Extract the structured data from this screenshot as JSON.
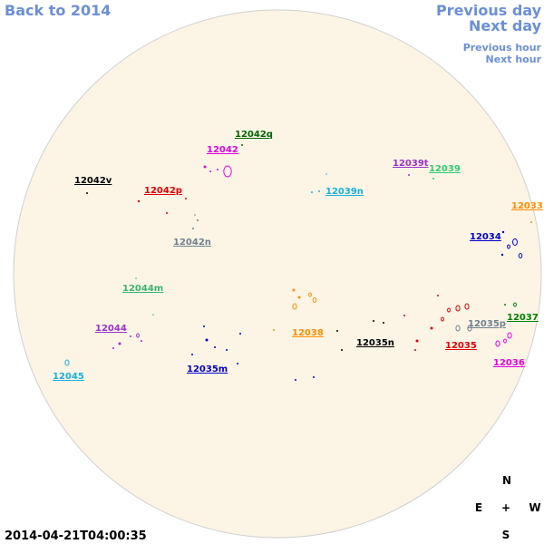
{
  "navigation": {
    "back": "Back to 2014",
    "previous_day": "Previous day",
    "next_day": "Next day",
    "previous_hour": "Previous hour",
    "next_hour": "Next hour"
  },
  "regions": [
    {
      "label": "12042q",
      "color": "#006400"
    },
    {
      "label": "12042",
      "color": "#e000e0"
    },
    {
      "label": "12042v",
      "color": "#000000"
    },
    {
      "label": "12042p",
      "color": "#e00000"
    },
    {
      "label": "12039t",
      "color": "#9932cc"
    },
    {
      "label": "12039",
      "color": "#2ecc71"
    },
    {
      "label": "12039n",
      "color": "#1ab0e0"
    },
    {
      "label": "12042n",
      "color": "#708090"
    },
    {
      "label": "12033",
      "color": "#ff8c00"
    },
    {
      "label": "12034",
      "color": "#0000cc"
    },
    {
      "label": "12044m",
      "color": "#3cb371"
    },
    {
      "label": "12044",
      "color": "#9932cc"
    },
    {
      "label": "12038",
      "color": "#ff8c00"
    },
    {
      "label": "12035n",
      "color": "#000000"
    },
    {
      "label": "12035p",
      "color": "#708090"
    },
    {
      "label": "12037",
      "color": "#008000"
    },
    {
      "label": "12035",
      "color": "#e00000"
    },
    {
      "label": "12036",
      "color": "#e000e0"
    },
    {
      "label": "12045",
      "color": "#1ab0e0"
    },
    {
      "label": "12035m",
      "color": "#0000cc"
    }
  ],
  "timestamp": "2014-04-21T04:00:35",
  "compass": {
    "north": "N",
    "east": "E",
    "center": "+",
    "west": "W",
    "south": "S"
  }
}
